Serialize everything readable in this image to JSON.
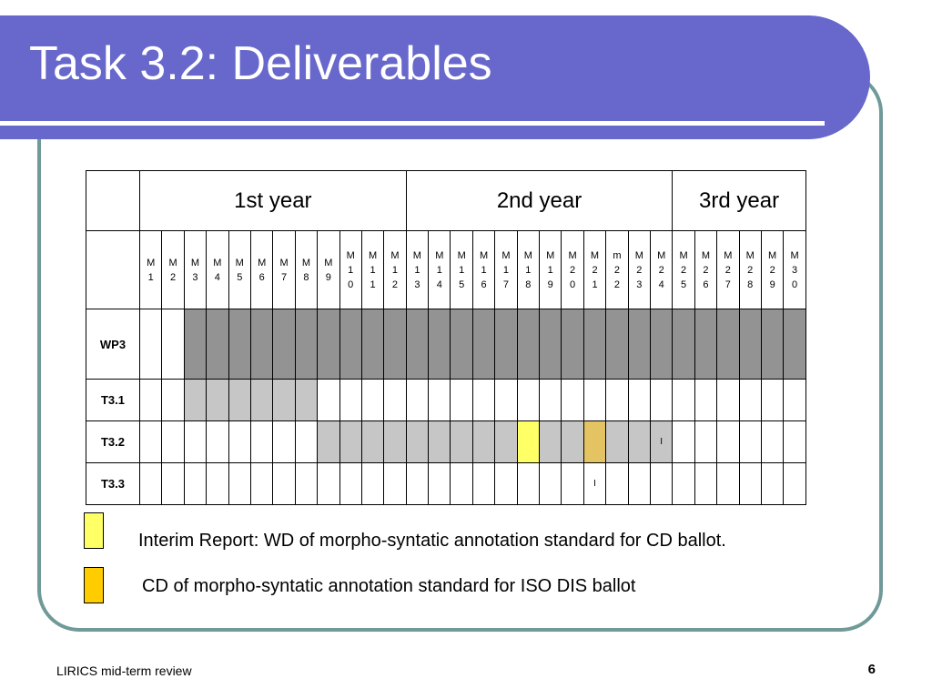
{
  "slide": {
    "title": "Task 3.2: Deliverables",
    "footer": "LIRICS mid-term review",
    "page_number": "6"
  },
  "table": {
    "years": [
      "1st year",
      "2nd year",
      "3rd year"
    ],
    "year_spans": [
      12,
      12,
      6
    ],
    "months": [
      [
        "M",
        "1"
      ],
      [
        "M",
        "2"
      ],
      [
        "M",
        "3"
      ],
      [
        "M",
        "4"
      ],
      [
        "M",
        "5"
      ],
      [
        "M",
        "6"
      ],
      [
        "M",
        "7"
      ],
      [
        "M",
        "8"
      ],
      [
        "M",
        "9"
      ],
      [
        "M",
        "1",
        "0"
      ],
      [
        "M",
        "1",
        "1"
      ],
      [
        "M",
        "1",
        "2"
      ],
      [
        "M",
        "1",
        "3"
      ],
      [
        "M",
        "1",
        "4"
      ],
      [
        "M",
        "1",
        "5"
      ],
      [
        "M",
        "1",
        "6"
      ],
      [
        "M",
        "1",
        "7"
      ],
      [
        "M",
        "1",
        "8"
      ],
      [
        "M",
        "1",
        "9"
      ],
      [
        "M",
        "2",
        "0"
      ],
      [
        "M",
        "2",
        "1"
      ],
      [
        "m",
        "2",
        "2"
      ],
      [
        "M",
        "2",
        "3"
      ],
      [
        "M",
        "2",
        "4"
      ],
      [
        "M",
        "2",
        "5"
      ],
      [
        "M",
        "2",
        "6"
      ],
      [
        "M",
        "2",
        "7"
      ],
      [
        "M",
        "2",
        "8"
      ],
      [
        "M",
        "2",
        "9"
      ],
      [
        "M",
        "3",
        "0"
      ]
    ],
    "rows": [
      {
        "label": "WP3",
        "cells": [
          "",
          "",
          "dark",
          "dark",
          "dark",
          "dark",
          "dark",
          "dark",
          "dark",
          "dark",
          "dark",
          "dark",
          "dark",
          "dark",
          "dark",
          "dark",
          "dark",
          "dark",
          "dark",
          "dark",
          "dark",
          "dark",
          "dark",
          "dark",
          "dark",
          "dark",
          "dark",
          "dark",
          "dark",
          "dark"
        ],
        "marks": {}
      },
      {
        "label": "T3.1",
        "cells": [
          "",
          "",
          "light",
          "light",
          "light",
          "light",
          "light",
          "light",
          "",
          "",
          "",
          "",
          "",
          "",
          "",
          "",
          "",
          "",
          "",
          "",
          "",
          "",
          "",
          "",
          "",
          "",
          "",
          "",
          "",
          ""
        ],
        "marks": {}
      },
      {
        "label": "T3.2",
        "cells": [
          "",
          "",
          "",
          "",
          "",
          "",
          "",
          "",
          "light",
          "light",
          "light",
          "light",
          "light",
          "light",
          "light",
          "light",
          "light",
          "yellow",
          "light",
          "light",
          "gold",
          "light",
          "light",
          "light",
          "",
          "",
          "",
          "",
          "",
          ""
        ],
        "marks": {
          "23": "I"
        }
      },
      {
        "label": "T3.3",
        "cells": [
          "",
          "",
          "",
          "",
          "",
          "",
          "",
          "",
          "",
          "",
          "",
          "",
          "",
          "",
          "",
          "",
          "",
          "",
          "",
          "",
          "",
          "",
          "",
          "",
          "",
          "",
          "",
          "",
          "",
          ""
        ],
        "marks": {
          "20": "I"
        }
      }
    ]
  },
  "legend": [
    {
      "color": "#ffff66",
      "text": "Interim Report: WD of morpho-syntatic annotation standard for CD ballot."
    },
    {
      "color": "#ffcc00",
      "text": "CD of morpho-syntatic annotation standard for ISO DIS ballot"
    }
  ]
}
